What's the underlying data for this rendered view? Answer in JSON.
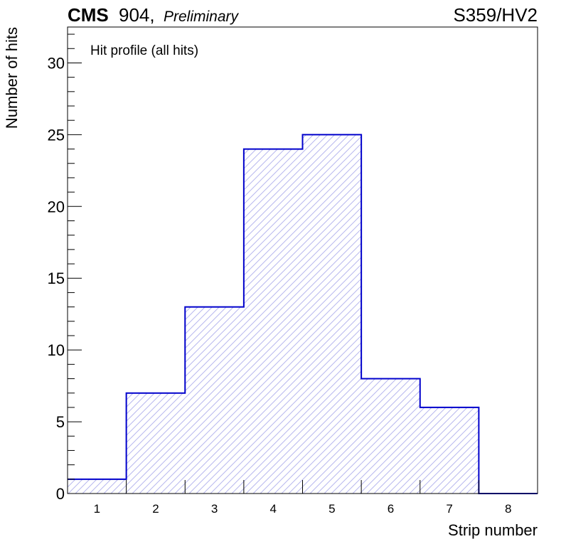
{
  "header": {
    "experiment": "CMS",
    "location": "904,",
    "status": "Preliminary",
    "run_label": "S359/HV2"
  },
  "chart_data": {
    "type": "bar",
    "style": "histogram-step",
    "categories": [
      "1",
      "2",
      "3",
      "4",
      "5",
      "6",
      "7",
      "8"
    ],
    "values": [
      1,
      7,
      13,
      24,
      25,
      8,
      6,
      0
    ],
    "annotation": "Hit profile (all hits)",
    "xlabel": "Strip number",
    "ylabel": "Number of hits",
    "xlim": [
      0.5,
      8.5
    ],
    "ylim": [
      0,
      32.5
    ],
    "y_major_ticks": [
      0,
      5,
      10,
      15,
      20,
      25,
      30
    ],
    "y_minor_step": 1,
    "grid": false,
    "legend": "none",
    "colors": {
      "line": "#0000cc",
      "hatch": "#b8b8ee"
    }
  }
}
